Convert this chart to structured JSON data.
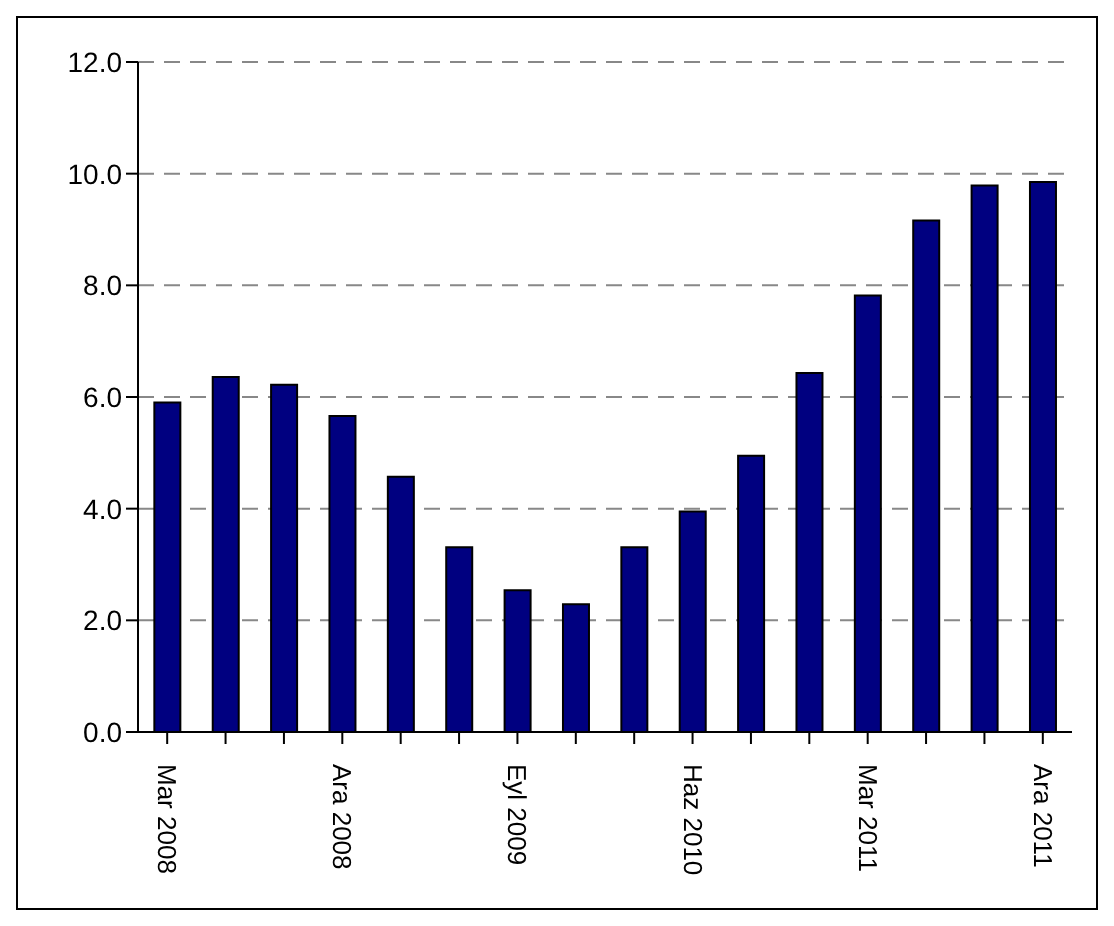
{
  "chart_data": {
    "type": "bar",
    "categories": [
      "Mar 2008",
      null,
      null,
      "Ara 2008",
      null,
      null,
      "Eyl 2009",
      null,
      null,
      "Haz 2010",
      null,
      null,
      "Mar 2011",
      null,
      null,
      "Ara 2011"
    ],
    "values": [
      5.9,
      6.36,
      6.22,
      5.66,
      4.57,
      3.31,
      2.54,
      2.29,
      3.31,
      3.95,
      4.95,
      6.43,
      7.82,
      9.16,
      9.79,
      9.85
    ],
    "color": "#000080",
    "ylim": [
      0,
      12
    ],
    "yticks": [
      {
        "value": 0,
        "label": "0.0"
      },
      {
        "value": 2,
        "label": "2.0"
      },
      {
        "value": 4,
        "label": "4.0"
      },
      {
        "value": 6,
        "label": "6.0"
      },
      {
        "value": 8,
        "label": "8.0"
      },
      {
        "value": 10,
        "label": "10.0"
      },
      {
        "value": 12,
        "label": "12.0"
      }
    ],
    "grid": "y",
    "legend": false
  }
}
